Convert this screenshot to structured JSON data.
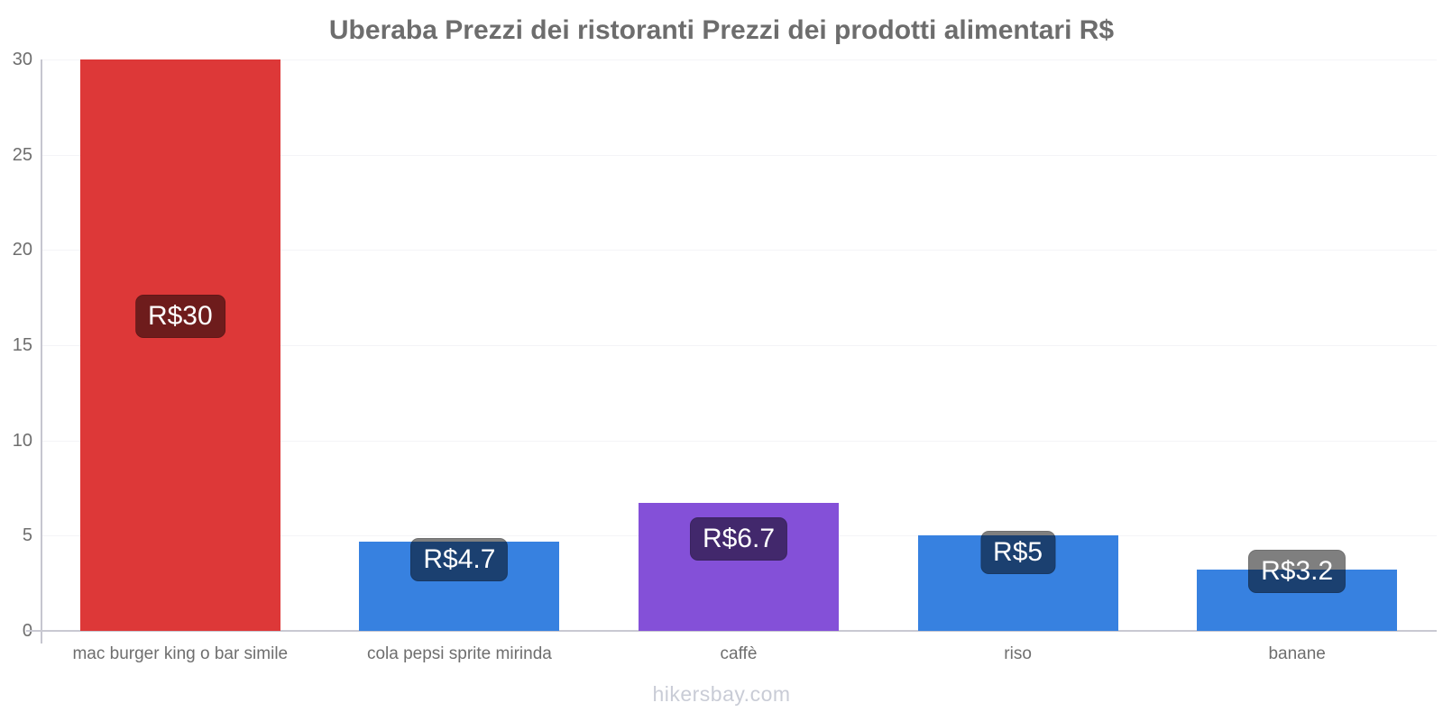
{
  "title": "Uberaba Prezzi dei ristoranti Prezzi dei prodotti alimentari R$",
  "footer": "hikersbay.com",
  "colors": {
    "red_bar": "#dd3838",
    "blue_bar": "#3781e0",
    "purple_bar": "#8450d8",
    "badge_bg": "rgba(0,0,0,0.5)",
    "badge_text": "#ffffff",
    "title_text": "#6d6d6d",
    "tick_text": "#6e6e6e",
    "axis_line": "#c9c9d2",
    "gridline": "#f4f4f7",
    "footer_text": "#c9ccd6"
  },
  "chart_data": {
    "type": "bar",
    "title": "Uberaba Prezzi dei ristoranti Prezzi dei prodotti alimentari R$",
    "categories": [
      "mac burger king o bar simile",
      "cola pepsi sprite mirinda",
      "caffè",
      "riso",
      "banane"
    ],
    "values": [
      30,
      4.7,
      6.7,
      5,
      3.2
    ],
    "value_labels": [
      "R$30",
      "R$4.7",
      "R$6.7",
      "R$5",
      "R$3.2"
    ],
    "bar_colors": [
      "#dd3838",
      "#3781e0",
      "#8450d8",
      "#3781e0",
      "#3781e0"
    ],
    "currency": "R$",
    "xlabel": "",
    "ylabel": "",
    "ylim": [
      0,
      30
    ],
    "yticks": [
      0,
      5,
      10,
      15,
      20,
      25,
      30
    ],
    "grid": true,
    "legend_position": "none"
  }
}
